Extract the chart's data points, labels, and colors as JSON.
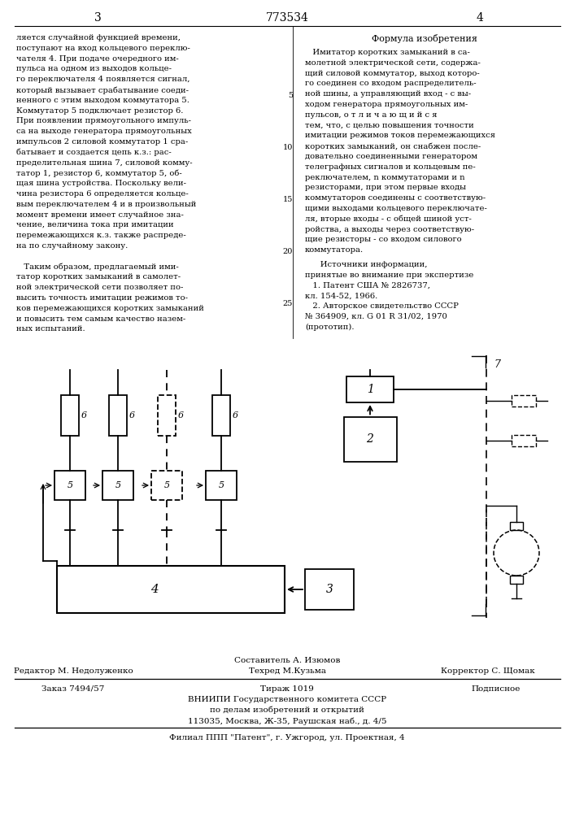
{
  "page_number_left": "3",
  "page_number_center": "773534",
  "page_number_right": "4",
  "left_text": [
    "ляется случайной функцией времени,",
    "поступают на вход кольцевого переклю-",
    "чателя 4. При подаче очередного им-",
    "пульса на одном из выходов кольце-",
    "го переключателя 4 появляется сигнал,",
    "который вызывает срабатывание соеди-",
    "ненного с этим выходом коммутатора 5.",
    "Коммутатор 5 подключает резистор 6.",
    "При появлении прямоугольного импуль-",
    "са на выходе генератора прямоугольных",
    "импульсов 2 силовой коммутатор 1 сра-",
    "батывает и создается цепь к.з.: рас-",
    "пределительная шина 7, силовой комму-",
    "татор 1, резистор 6, коммутатор 5, об-",
    "щая шина устройства. Поскольку вели-",
    "чина резистора 6 определяется кольце-",
    "вым переключателем 4 и в произвольный",
    "момент времени имеет случайное зна-",
    "чение, величина тока при имитации",
    "перемежающихся к.з. также распреде-",
    "на по случайному закону.",
    "",
    "   Таким образом, предлагаемый ими-",
    "татор коротких замыканий в самолет-",
    "ной электрической сети позволяет по-",
    "высить точность имитации режимов то-",
    "ков перемежающихся коротких замыканий",
    "и повысить тем самым качество назем-",
    "ных испытаний."
  ],
  "right_title": "Формула изобретения",
  "right_text": [
    "   Имитатор коротких замыканий в са-",
    "молетной электрической сети, содержа-",
    "щий силовой коммутатор, выход которо-",
    "го соединен со входом распределитель-",
    "ной шины, а управляющий вход - с вы-",
    "ходом генератора прямоугольных им-",
    "пульсов, о т л и ч а ю щ и й с я",
    "тем, что, с целью повышения точности",
    "имитации режимов токов перемежающихся",
    "коротких замыканий, он снабжен после-",
    "довательно соединенными генератором",
    "телеграфных сигналов и кольцевым пе-",
    "реключателем, n коммутаторами и n",
    "резисторами, при этом первые входы",
    "коммутаторов соединены с соответствую-",
    "щими выходами кольцевого переключате-",
    "ля, вторые входы - с общей шиной уст-",
    "ройства, а выходы через соответствую-",
    "щие резисторы - со входом силового",
    "коммутатора."
  ],
  "right_text2": [
    "      Источники информации,",
    "принятые во внимание при экспертизе",
    "   1. Патент США № 2826737,",
    "кл. 154-52, 1966.",
    "   2. Авторское свидетельство СССР",
    "№ 364909, кл. G 01 R 31/02, 1970",
    "(прототип)."
  ],
  "line_numbers_right": [
    5,
    10,
    15,
    20,
    25
  ],
  "footer_composer": "Составитель А. Изюмов",
  "footer_editor": "Редактор М. Недолуженко",
  "footer_tech": "Техред М.Кузьма",
  "footer_corrector": "Корректор С. Щомак",
  "footer_order": "Заказ 7494/57",
  "footer_print": "Тираж 1019",
  "footer_subscription": "Подписное",
  "footer_org1": "ВНИИПИ Государственного комитета СССР",
  "footer_org2": "по делам изобретений и открытий",
  "footer_address": "113035, Москва, Ж-35, Раушская наб., д. 4/5",
  "footer_branch": "Филиал ППП \"Патент\", г. Ужгород, ул. Проектная, 4",
  "bg_color": "#ffffff"
}
